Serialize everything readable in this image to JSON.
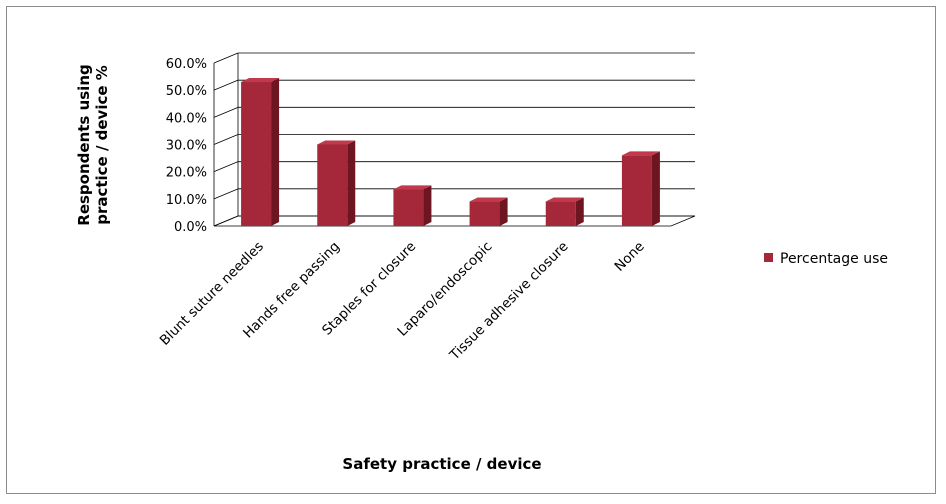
{
  "chart_data": {
    "type": "bar",
    "categories": [
      "Blunt suture needles",
      "Hands free passing",
      "Staples for closure",
      "Laparo/endoscopic",
      "Tissue adhesive closure",
      "None"
    ],
    "series": [
      {
        "name": "Percentage use",
        "values": [
          53.0,
          30.0,
          13.5,
          9.0,
          9.0,
          26.0
        ]
      }
    ],
    "ylim": [
      0,
      60
    ],
    "yticks": [
      "0.0%",
      "10.0%",
      "20.0%",
      "30.0%",
      "40.0%",
      "50.0%",
      "60.0%"
    ],
    "ylabel_line1": "Respondents using",
    "ylabel_line2": "practice / device %",
    "xlabel": "Safety practice / device",
    "legend_position": "right",
    "grid": true,
    "colors": {
      "bar_front": "#A4283A",
      "bar_side": "#6E1522",
      "bar_top": "#C0394C",
      "grid": "#000000",
      "frame": "#8c8c8c"
    }
  }
}
